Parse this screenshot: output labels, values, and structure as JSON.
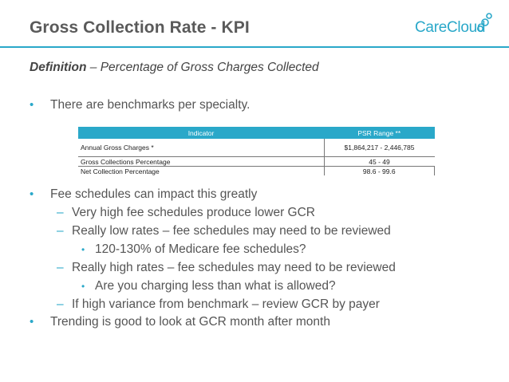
{
  "slide": {
    "title": "Gross Collection Rate - KPI",
    "logo_text": "CareCloud",
    "definition_label": "Definition",
    "definition_text": " – Percentage of Gross Charges Collected"
  },
  "bullets_top": [
    {
      "mark": "•",
      "text": "There are benchmarks per specialty."
    }
  ],
  "table": {
    "headers": [
      "Indicator",
      "PSR Range **"
    ],
    "rows": [
      {
        "indicator": "Annual Gross Charges *",
        "range": "$1,864,217 - 2,446,785"
      },
      {
        "indicator": "Gross Collections Percentage",
        "range": "45 - 49"
      },
      {
        "indicator": "Net Collection Percentage",
        "range": "98.6 - 99.6"
      }
    ]
  },
  "bullets_bottom": [
    {
      "mark": "•",
      "text": "Fee schedules can impact this greatly"
    },
    {
      "mark": "–",
      "text": "Very high fee schedules produce lower GCR"
    },
    {
      "mark": "–",
      "text": "Really low rates – fee schedules may need to be reviewed"
    },
    {
      "mark": "•",
      "text": "120-130% of Medicare fee schedules?"
    },
    {
      "mark": "–",
      "text": "Really high rates – fee schedules may need to be reviewed"
    },
    {
      "mark": "•",
      "text": "Are you charging less than what is allowed?"
    },
    {
      "mark": "–",
      "text": "If high variance from benchmark – review GCR by payer"
    },
    {
      "mark": "•",
      "text": "Trending is good to look at GCR month after month"
    }
  ],
  "colors": {
    "accent": "#2aa8c9",
    "text": "#555555"
  }
}
